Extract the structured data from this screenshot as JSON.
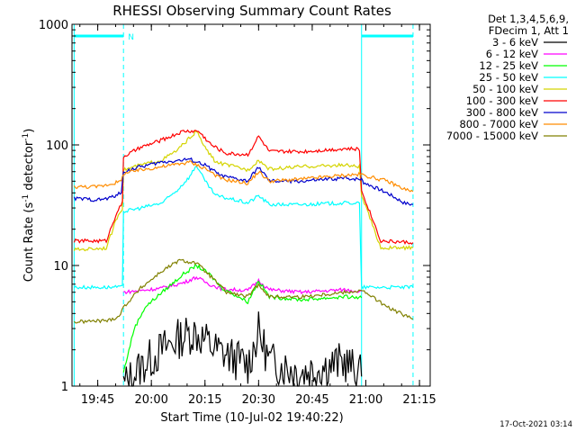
{
  "chart_data": {
    "type": "line",
    "title": "RHESSI Observing Summary Count Rates",
    "xlabel": "Start Time (10-Jul-02 19:40:22)",
    "ylabel": "Count Rate (s",
    "ylabel_sup1": "-1",
    "ylabel_mid": " detector",
    "ylabel_sup2": "-1",
    "ylabel_end": ")",
    "y_scale": "log",
    "ylim": [
      1,
      1000
    ],
    "xlim_minutes": [
      19.63,
      21.3
    ],
    "x_ticks": [
      {
        "t": 19.75,
        "label": "19:45"
      },
      {
        "t": 20.0,
        "label": "20:00"
      },
      {
        "t": 20.25,
        "label": "20:15"
      },
      {
        "t": 20.5,
        "label": "20:30"
      },
      {
        "t": 20.75,
        "label": "20:45"
      },
      {
        "t": 21.0,
        "label": "21:00"
      },
      {
        "t": 21.25,
        "label": "21:15"
      }
    ],
    "y_ticks": [
      {
        "v": 1,
        "label": "1"
      },
      {
        "v": 10,
        "label": "10"
      },
      {
        "v": 100,
        "label": "100"
      },
      {
        "v": 1000,
        "label": "1000"
      }
    ],
    "legend_header": [
      "Det 1,3,4,5,6,9,",
      "FDecim 1, Att 1"
    ],
    "legend_position": "right",
    "night_marker": "N",
    "eclipse_boundaries_hours": [
      19.64,
      19.87,
      20.98,
      21.22
    ],
    "saa_level": 800,
    "series": [
      {
        "name": "3 - 6 keV",
        "color": "#000000",
        "points": [
          [
            19.87,
            1.0
          ],
          [
            19.96,
            1.5
          ],
          [
            20.05,
            2.0
          ],
          [
            20.13,
            2.5
          ],
          [
            20.2,
            2.8
          ],
          [
            20.25,
            2.4
          ],
          [
            20.3,
            2.0
          ],
          [
            20.45,
            1.5
          ],
          [
            20.5,
            2.8
          ],
          [
            20.55,
            1.6
          ],
          [
            20.7,
            1.3
          ],
          [
            20.9,
            1.6
          ],
          [
            20.98,
            1.2
          ]
        ]
      },
      {
        "name": "6 - 12 keV",
        "color": "#ff00ff",
        "points": [
          [
            19.87,
            6.0
          ],
          [
            19.95,
            6.2
          ],
          [
            20.05,
            6.5
          ],
          [
            20.15,
            7.2
          ],
          [
            20.21,
            8.0
          ],
          [
            20.27,
            7.0
          ],
          [
            20.33,
            6.4
          ],
          [
            20.45,
            6.2
          ],
          [
            20.5,
            7.5
          ],
          [
            20.55,
            6.3
          ],
          [
            20.7,
            6.0
          ],
          [
            20.9,
            6.3
          ],
          [
            20.98,
            6.1
          ]
        ]
      },
      {
        "name": "12 - 25 keV",
        "color": "#00ff00",
        "points": [
          [
            19.87,
            1.3
          ],
          [
            19.92,
            3.0
          ],
          [
            19.97,
            4.5
          ],
          [
            20.05,
            6.0
          ],
          [
            20.15,
            8.5
          ],
          [
            20.21,
            10.0
          ],
          [
            20.27,
            8.5
          ],
          [
            20.33,
            6.5
          ],
          [
            20.45,
            5.0
          ],
          [
            20.5,
            7.5
          ],
          [
            20.55,
            5.5
          ],
          [
            20.7,
            5.2
          ],
          [
            20.9,
            5.5
          ],
          [
            20.98,
            5.4
          ]
        ]
      },
      {
        "name": "25 - 50 keV",
        "color": "#00ffff",
        "points": [
          [
            19.64,
            6.6
          ],
          [
            19.8,
            6.6
          ],
          [
            19.865,
            6.6
          ],
          [
            19.87,
            28.0
          ],
          [
            19.95,
            30.0
          ],
          [
            20.05,
            33.0
          ],
          [
            20.12,
            42.0
          ],
          [
            20.18,
            55.0
          ],
          [
            20.21,
            68.0
          ],
          [
            20.25,
            50.0
          ],
          [
            20.3,
            38.0
          ],
          [
            20.45,
            33.0
          ],
          [
            20.5,
            38.0
          ],
          [
            20.55,
            32.0
          ],
          [
            20.7,
            32.0
          ],
          [
            20.9,
            33.0
          ],
          [
            20.97,
            33.0
          ],
          [
            20.98,
            6.6
          ],
          [
            21.1,
            6.6
          ],
          [
            21.22,
            6.6
          ]
        ]
      },
      {
        "name": "50 - 100 keV",
        "color": "#d4d400",
        "points": [
          [
            19.64,
            13.5
          ],
          [
            19.79,
            14.0
          ],
          [
            19.84,
            25.0
          ],
          [
            19.865,
            30.0
          ],
          [
            19.87,
            62.0
          ],
          [
            19.95,
            68.0
          ],
          [
            20.05,
            75.0
          ],
          [
            20.12,
            90.0
          ],
          [
            20.18,
            115.0
          ],
          [
            20.21,
            130.0
          ],
          [
            20.25,
            95.0
          ],
          [
            20.3,
            72.0
          ],
          [
            20.45,
            62.0
          ],
          [
            20.5,
            75.0
          ],
          [
            20.55,
            63.0
          ],
          [
            20.7,
            66.0
          ],
          [
            20.9,
            68.0
          ],
          [
            20.97,
            66.0
          ],
          [
            20.98,
            38.0
          ],
          [
            21.07,
            14.0
          ],
          [
            21.22,
            14.0
          ]
        ]
      },
      {
        "name": "100 - 300 keV",
        "color": "#ff0000",
        "points": [
          [
            19.64,
            16.0
          ],
          [
            19.79,
            16.0
          ],
          [
            19.84,
            28.0
          ],
          [
            19.865,
            33.0
          ],
          [
            19.87,
            80.0
          ],
          [
            19.95,
            95.0
          ],
          [
            20.05,
            110.0
          ],
          [
            20.15,
            130.0
          ],
          [
            20.22,
            130.0
          ],
          [
            20.28,
            100.0
          ],
          [
            20.35,
            85.0
          ],
          [
            20.45,
            83.0
          ],
          [
            20.5,
            118.0
          ],
          [
            20.55,
            88.0
          ],
          [
            20.7,
            88.0
          ],
          [
            20.9,
            93.0
          ],
          [
            20.97,
            92.0
          ],
          [
            20.98,
            42.0
          ],
          [
            21.07,
            16.0
          ],
          [
            21.22,
            15.5
          ]
        ]
      },
      {
        "name": "300 - 800 keV",
        "color": "#0000cc",
        "points": [
          [
            19.64,
            36.0
          ],
          [
            19.75,
            35.0
          ],
          [
            19.8,
            36.0
          ],
          [
            19.86,
            40.0
          ],
          [
            19.87,
            60.0
          ],
          [
            19.95,
            66.0
          ],
          [
            20.05,
            72.0
          ],
          [
            20.18,
            76.0
          ],
          [
            20.25,
            68.0
          ],
          [
            20.33,
            55.0
          ],
          [
            20.45,
            50.0
          ],
          [
            20.5,
            66.0
          ],
          [
            20.55,
            50.0
          ],
          [
            20.7,
            50.0
          ],
          [
            20.9,
            53.0
          ],
          [
            20.98,
            52.0
          ],
          [
            20.99,
            49.0
          ],
          [
            21.1,
            40.0
          ],
          [
            21.18,
            33.0
          ],
          [
            21.22,
            32.0
          ]
        ]
      },
      {
        "name": "800 - 7000 keV",
        "color": "#ff8c00",
        "points": [
          [
            19.64,
            45.0
          ],
          [
            19.75,
            45.0
          ],
          [
            19.8,
            47.0
          ],
          [
            19.86,
            50.0
          ],
          [
            19.87,
            58.0
          ],
          [
            19.95,
            62.0
          ],
          [
            20.05,
            66.0
          ],
          [
            20.18,
            72.0
          ],
          [
            20.25,
            64.0
          ],
          [
            20.33,
            52.0
          ],
          [
            20.45,
            48.0
          ],
          [
            20.5,
            60.0
          ],
          [
            20.55,
            50.0
          ],
          [
            20.7,
            52.0
          ],
          [
            20.9,
            56.0
          ],
          [
            20.98,
            57.0
          ],
          [
            20.99,
            56.0
          ],
          [
            21.1,
            50.0
          ],
          [
            21.18,
            43.0
          ],
          [
            21.22,
            41.0
          ]
        ]
      },
      {
        "name": "7000 - 15000 keV",
        "color": "#808000",
        "points": [
          [
            19.64,
            3.4
          ],
          [
            19.8,
            3.5
          ],
          [
            19.85,
            3.8
          ],
          [
            19.87,
            4.5
          ],
          [
            19.95,
            6.5
          ],
          [
            20.05,
            9.0
          ],
          [
            20.13,
            11.0
          ],
          [
            20.21,
            10.5
          ],
          [
            20.28,
            8.0
          ],
          [
            20.35,
            6.0
          ],
          [
            20.45,
            5.5
          ],
          [
            20.5,
            7.0
          ],
          [
            20.55,
            5.5
          ],
          [
            20.7,
            5.5
          ],
          [
            20.9,
            6.0
          ],
          [
            20.98,
            6.2
          ],
          [
            21.03,
            5.5
          ],
          [
            21.1,
            4.5
          ],
          [
            21.22,
            3.6
          ]
        ]
      }
    ]
  },
  "footer_date": "17-Oct-2021 03:14"
}
